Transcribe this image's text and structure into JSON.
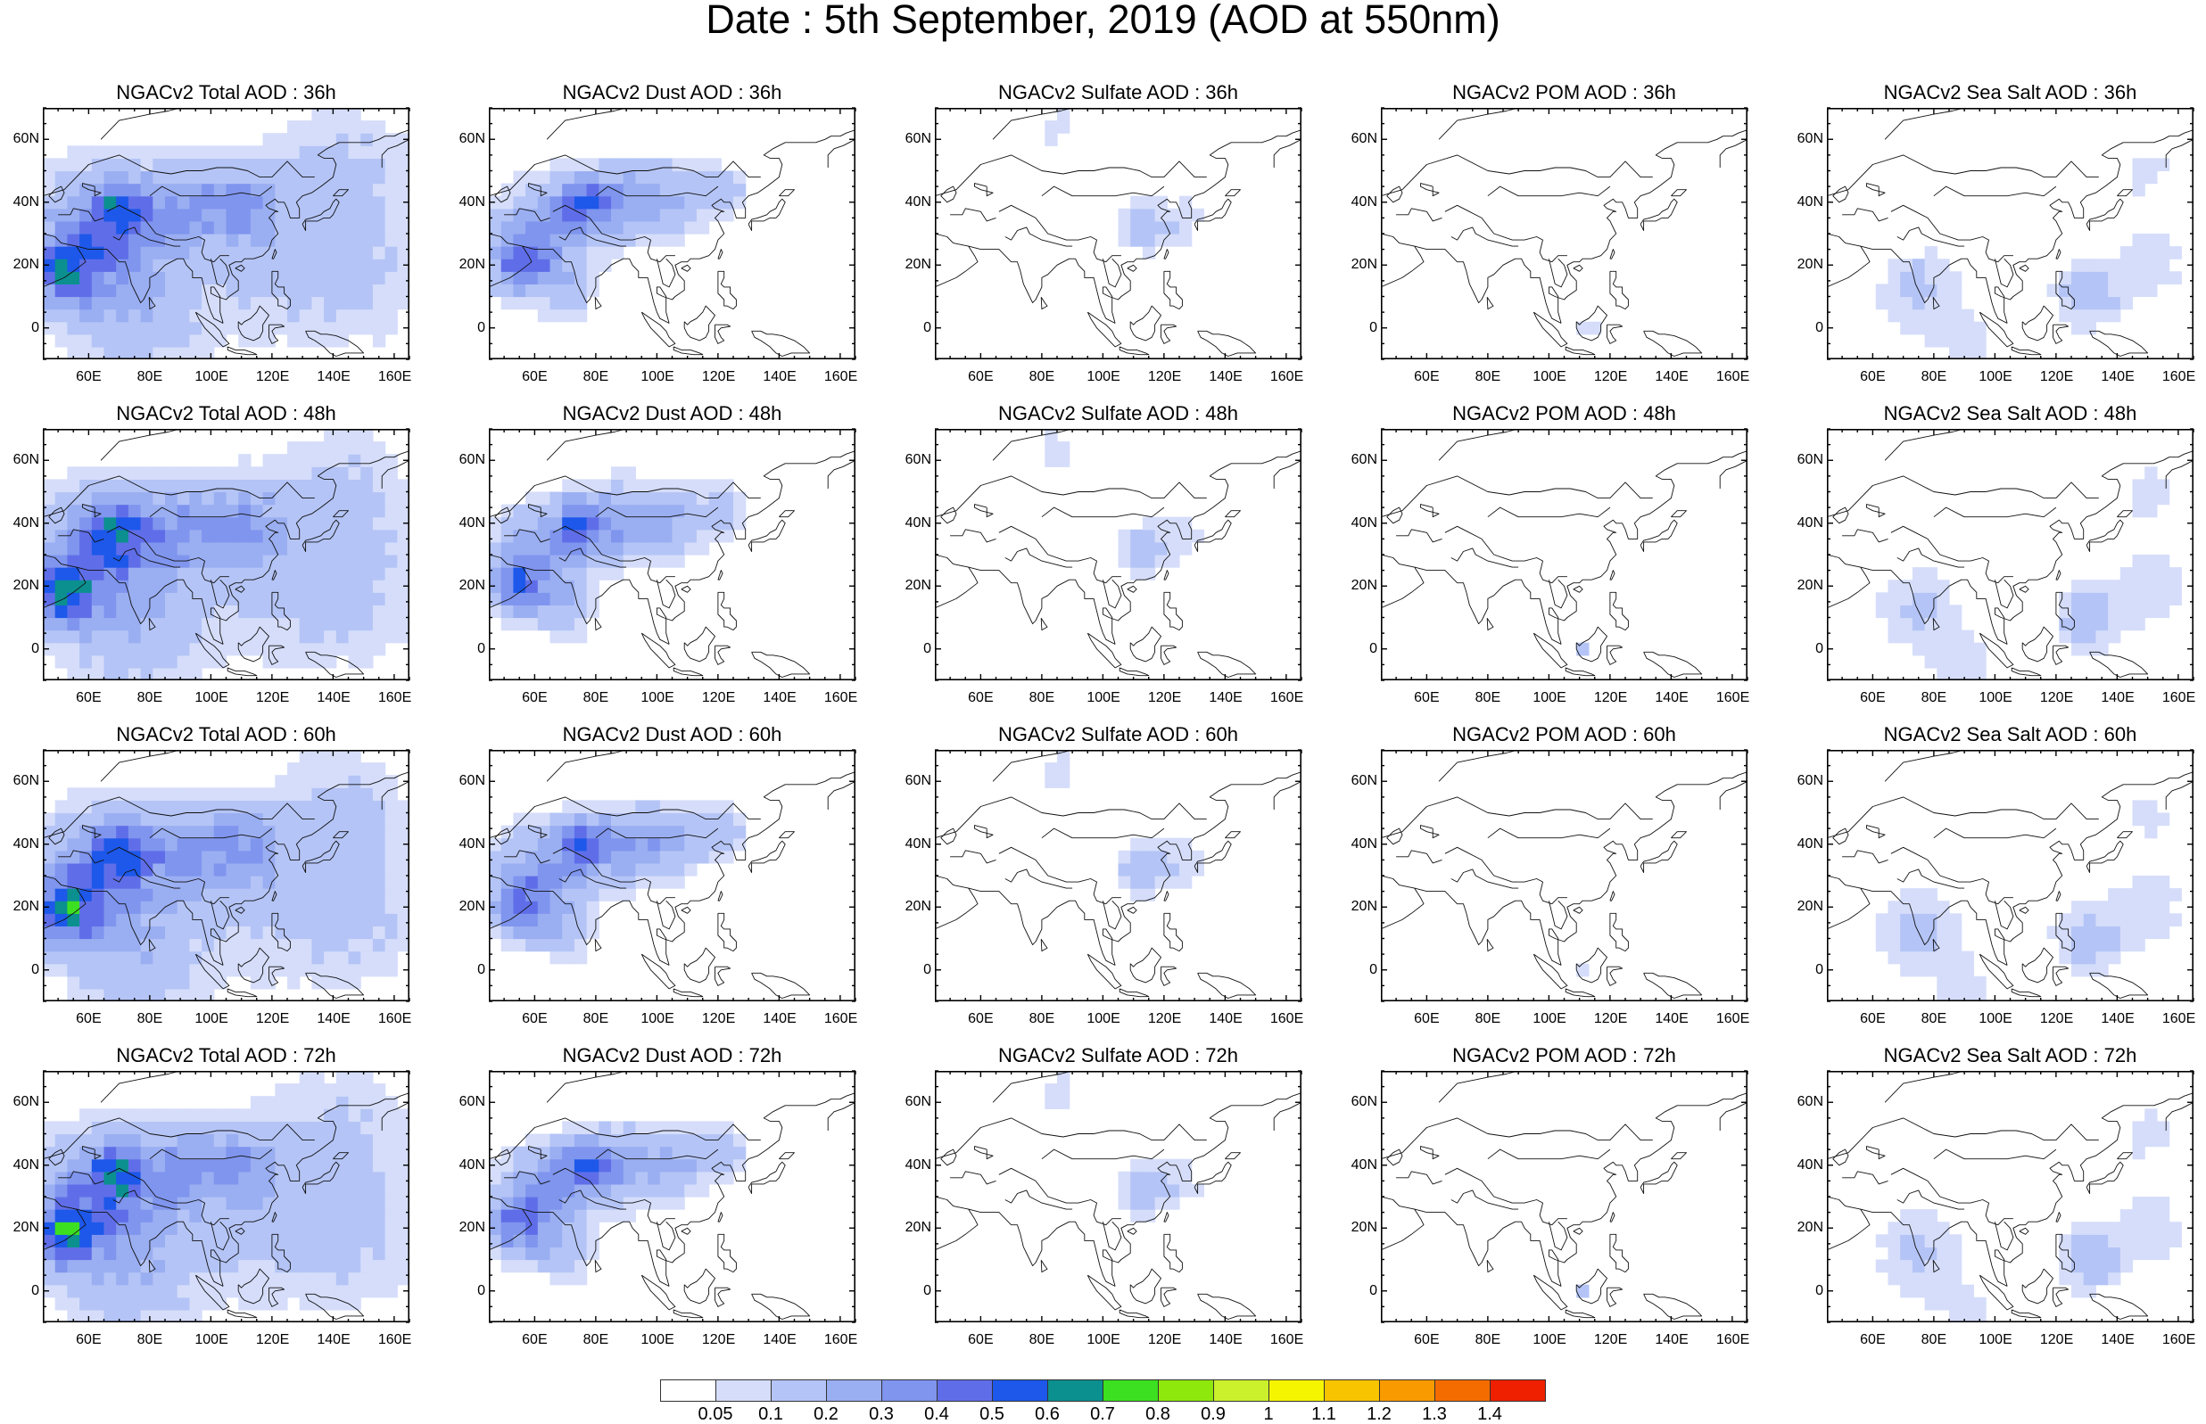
{
  "title": "Date : 5th September, 2019 (AOD at 550nm)",
  "axes": {
    "lat_labels": [
      "60N",
      "40N",
      "20N",
      "0"
    ],
    "lon_labels": [
      "60E",
      "80E",
      "100E",
      "120E",
      "140E",
      "160E"
    ],
    "lon_range": [
      45,
      165
    ],
    "lat_range": [
      -10,
      70
    ]
  },
  "panels": [
    {
      "title": "NGACv2 Total AOD : 36h",
      "field": "total",
      "hour": 36
    },
    {
      "title": "NGACv2 Dust AOD : 36h",
      "field": "dust",
      "hour": 36
    },
    {
      "title": "NGACv2 Sulfate AOD : 36h",
      "field": "sulfate",
      "hour": 36
    },
    {
      "title": "NGACv2 POM AOD : 36h",
      "field": "pom",
      "hour": 36
    },
    {
      "title": "NGACv2 Sea Salt AOD : 36h",
      "field": "seasalt",
      "hour": 36
    },
    {
      "title": "NGACv2 Total AOD : 48h",
      "field": "total",
      "hour": 48
    },
    {
      "title": "NGACv2 Dust AOD : 48h",
      "field": "dust",
      "hour": 48
    },
    {
      "title": "NGACv2 Sulfate AOD : 48h",
      "field": "sulfate",
      "hour": 48
    },
    {
      "title": "NGACv2 POM AOD : 48h",
      "field": "pom",
      "hour": 48
    },
    {
      "title": "NGACv2 Sea Salt AOD : 48h",
      "field": "seasalt",
      "hour": 48
    },
    {
      "title": "NGACv2 Total AOD : 60h",
      "field": "total",
      "hour": 60
    },
    {
      "title": "NGACv2 Dust AOD : 60h",
      "field": "dust",
      "hour": 60
    },
    {
      "title": "NGACv2 Sulfate AOD : 60h",
      "field": "sulfate",
      "hour": 60
    },
    {
      "title": "NGACv2 POM AOD : 60h",
      "field": "pom",
      "hour": 60
    },
    {
      "title": "NGACv2 Sea Salt AOD : 60h",
      "field": "seasalt",
      "hour": 60
    },
    {
      "title": "NGACv2 Total AOD : 72h",
      "field": "total",
      "hour": 72
    },
    {
      "title": "NGACv2 Dust AOD : 72h",
      "field": "dust",
      "hour": 72
    },
    {
      "title": "NGACv2 Sulfate AOD : 72h",
      "field": "sulfate",
      "hour": 72
    },
    {
      "title": "NGACv2 POM AOD : 72h",
      "field": "pom",
      "hour": 72
    },
    {
      "title": "NGACv2 Sea Salt  AOD : 72h",
      "field": "seasalt",
      "hour": 72
    }
  ],
  "colorbar": {
    "labels": [
      "0.05",
      "0.1",
      "0.2",
      "0.3",
      "0.4",
      "0.5",
      "0.6",
      "0.7",
      "0.8",
      "0.9",
      "1",
      "1.1",
      "1.2",
      "1.3",
      "1.4"
    ],
    "colors": [
      "#ffffff",
      "#d5ddfa",
      "#b4c4f6",
      "#9aaef2",
      "#7f95ee",
      "#5f6ee8",
      "#1d58ea",
      "#0b908f",
      "#3ce020",
      "#8fe80c",
      "#cbf02c",
      "#f6f500",
      "#f8c400",
      "#f89a00",
      "#f46c00",
      "#ee2000"
    ]
  },
  "chart_data": {
    "type": "heatmap",
    "title": "Date : 5th September, 2019 (AOD at 550nm)",
    "x_range": [
      45,
      165
    ],
    "y_range": [
      -10,
      70
    ],
    "x_ticks": [
      "60E",
      "80E",
      "100E",
      "120E",
      "140E",
      "160E"
    ],
    "y_ticks": [
      "60N",
      "40N",
      "20N",
      "0"
    ],
    "levels": [
      0.05,
      0.1,
      0.2,
      0.3,
      0.4,
      0.5,
      0.6,
      0.7,
      0.8,
      0.9,
      1,
      1.1,
      1.2,
      1.3,
      1.4
    ],
    "rows": [
      "36h",
      "48h",
      "60h",
      "72h"
    ],
    "columns": [
      "Total",
      "Dust",
      "Sulfate",
      "POM",
      "Sea Salt"
    ],
    "features": {
      "total": [
        {
          "lon": 62,
          "lat": 30,
          "r": 20,
          "v": 0.3
        },
        {
          "lon": 52,
          "lat": 18,
          "r": 10,
          "v": 0.42
        },
        {
          "lon": 70,
          "lat": 38,
          "r": 9,
          "v": 0.36
        },
        {
          "lon": 90,
          "lat": 38,
          "r": 14,
          "v": 0.24
        },
        {
          "lon": 110,
          "lat": 40,
          "r": 12,
          "v": 0.22
        },
        {
          "lon": 75,
          "lat": 5,
          "r": 22,
          "v": 0.15
        },
        {
          "lon": 120,
          "lat": 25,
          "r": 28,
          "v": 0.12
        },
        {
          "lon": 145,
          "lat": 50,
          "r": 22,
          "v": 0.1
        },
        {
          "lon": 150,
          "lat": 15,
          "r": 22,
          "v": 0.08
        }
      ],
      "dust": [
        {
          "lon": 62,
          "lat": 30,
          "r": 15,
          "v": 0.28
        },
        {
          "lon": 55,
          "lat": 20,
          "r": 9,
          "v": 0.3
        },
        {
          "lon": 75,
          "lat": 40,
          "r": 8,
          "v": 0.36
        },
        {
          "lon": 88,
          "lat": 40,
          "r": 12,
          "v": 0.24
        },
        {
          "lon": 105,
          "lat": 41,
          "r": 11,
          "v": 0.2
        },
        {
          "lon": 122,
          "lat": 44,
          "r": 8,
          "v": 0.14
        },
        {
          "lon": 70,
          "lat": 12,
          "r": 9,
          "v": 0.12
        }
      ],
      "sulfate": [
        {
          "lon": 112,
          "lat": 32,
          "r": 8,
          "v": 0.14
        },
        {
          "lon": 125,
          "lat": 34,
          "r": 9,
          "v": 0.08
        },
        {
          "lon": 85,
          "lat": 64,
          "r": 8,
          "v": 0.07
        }
      ],
      "pom": [
        {
          "lon": 112,
          "lat": 0,
          "r": 3,
          "v": 0.12
        }
      ],
      "seasalt": [
        {
          "lon": 75,
          "lat": 12,
          "r": 14,
          "v": 0.12
        },
        {
          "lon": 130,
          "lat": 10,
          "r": 10,
          "v": 0.15
        },
        {
          "lon": 150,
          "lat": 20,
          "r": 15,
          "v": 0.08
        },
        {
          "lon": 90,
          "lat": -5,
          "r": 10,
          "v": 0.07
        },
        {
          "lon": 150,
          "lat": 50,
          "r": 9,
          "v": 0.07
        }
      ]
    }
  }
}
